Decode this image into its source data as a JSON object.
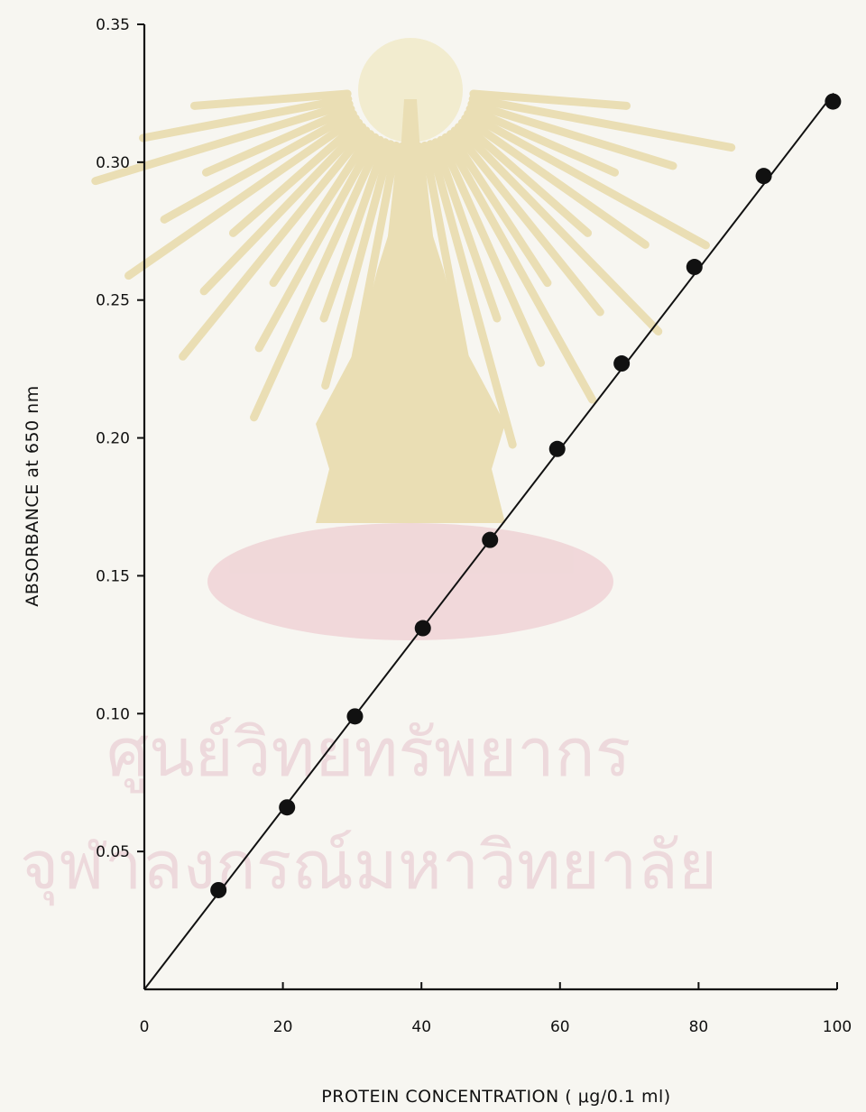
{
  "watermark": {
    "line1": "ศูนย์วิทยทรัพยากร",
    "line2": "จุฬาลงกรณ์มหาวิทยาลัย",
    "seal_color": "#e9dcae",
    "band_color": "#f0d5d7",
    "text_color": "#edd6da"
  },
  "chart_data": {
    "type": "scatter",
    "xlabel": "PROTEIN  CONCENTRATION ( μg/0.1 ml)",
    "ylabel": "ABSORBANCE  at  650 nm",
    "xlim": [
      0,
      100
    ],
    "ylim": [
      0,
      0.35
    ],
    "x_ticks": [
      {
        "value": 0,
        "label": "0"
      },
      {
        "value": 20,
        "label": "20"
      },
      {
        "value": 40,
        "label": "40"
      },
      {
        "value": 60,
        "label": "60"
      },
      {
        "value": 80,
        "label": "80"
      },
      {
        "value": 100,
        "label": "100"
      }
    ],
    "y_ticks": [
      {
        "value": 0.05,
        "label": "0.05"
      },
      {
        "value": 0.1,
        "label": "0.10"
      },
      {
        "value": 0.15,
        "label": "0.15"
      },
      {
        "value": 0.2,
        "label": "0.20"
      },
      {
        "value": 0.25,
        "label": "0.25"
      },
      {
        "value": 0.3,
        "label": "0.30"
      },
      {
        "value": 0.35,
        "label": "0.35"
      }
    ],
    "grid": false,
    "series": [
      {
        "x": [
          10.7,
          20.6,
          30.4,
          40.2,
          49.9,
          59.6,
          68.9,
          79.4,
          89.4,
          99.4
        ],
        "y": [
          0.036,
          0.066,
          0.099,
          0.131,
          0.163,
          0.196,
          0.227,
          0.262,
          0.295,
          0.322
        ],
        "marker": "filled-circle",
        "color": "#111111"
      }
    ],
    "fit_line": {
      "x": [
        0,
        99.5
      ],
      "y": [
        0,
        0.325
      ],
      "color": "#111111"
    }
  }
}
